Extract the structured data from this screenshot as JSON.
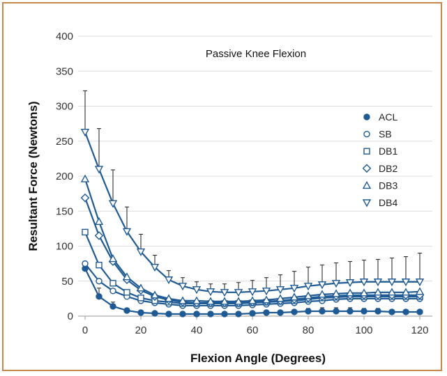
{
  "chart_data": {
    "type": "line",
    "title": "Passive Knee Flexion",
    "xlabel": "Flexion Angle (Degrees)",
    "ylabel": "Resultant Force (Newtons)",
    "xlim": [
      0,
      120
    ],
    "ylim": [
      0,
      400
    ],
    "x_ticks": [
      "0",
      "20",
      "40",
      "60",
      "80",
      "100",
      "120"
    ],
    "y_ticks": [
      "0",
      "50",
      "100",
      "150",
      "200",
      "250",
      "300",
      "350",
      "400"
    ],
    "grid": "horizontal",
    "legend_position": "right",
    "line_color": "#1f5a94",
    "x": [
      0,
      5,
      10,
      15,
      20,
      25,
      30,
      35,
      40,
      45,
      50,
      55,
      60,
      65,
      70,
      75,
      80,
      85,
      90,
      95,
      100,
      105,
      110,
      115,
      120
    ],
    "series": [
      {
        "name": "ACL",
        "marker": "circle-filled",
        "values": [
          68,
          28,
          14,
          8,
          5,
          4,
          3,
          3,
          3,
          3,
          3,
          3,
          4,
          5,
          5,
          6,
          7,
          7,
          7,
          7,
          7,
          7,
          6,
          6,
          6
        ],
        "error": [
          0,
          12,
          6,
          3,
          2,
          1,
          1,
          1,
          1,
          1,
          1,
          1,
          1,
          2,
          2,
          3,
          4,
          5,
          5,
          5,
          4,
          4,
          3,
          2,
          2
        ]
      },
      {
        "name": "SB",
        "marker": "circle-open",
        "values": [
          75,
          50,
          36,
          28,
          22,
          19,
          17,
          15,
          15,
          15,
          15,
          15,
          16,
          17,
          18,
          19,
          21,
          22,
          24,
          25,
          25,
          25,
          25,
          25,
          25
        ],
        "error": []
      },
      {
        "name": "DB1",
        "marker": "square-open",
        "values": [
          120,
          73,
          47,
          34,
          26,
          22,
          20,
          18,
          18,
          18,
          18,
          18,
          19,
          20,
          21,
          22,
          24,
          26,
          27,
          28,
          28,
          28,
          28,
          28,
          28
        ],
        "error": []
      },
      {
        "name": "DB2",
        "marker": "diamond-open",
        "values": [
          169,
          115,
          78,
          52,
          37,
          28,
          23,
          20,
          19,
          19,
          19,
          19,
          20,
          21,
          22,
          24,
          26,
          28,
          29,
          30,
          30,
          30,
          30,
          30,
          30
        ],
        "error": []
      },
      {
        "name": "DB3",
        "marker": "triangle-up-open",
        "values": [
          196,
          135,
          82,
          56,
          40,
          30,
          25,
          22,
          22,
          21,
          21,
          21,
          22,
          23,
          25,
          27,
          29,
          31,
          32,
          33,
          33,
          34,
          34,
          34,
          35
        ],
        "error": []
      },
      {
        "name": "DB4",
        "marker": "triangle-down-open",
        "values": [
          263,
          210,
          161,
          121,
          92,
          70,
          52,
          43,
          38,
          35,
          34,
          34,
          35,
          36,
          38,
          40,
          43,
          45,
          47,
          48,
          49,
          49,
          49,
          49,
          49
        ],
        "error": [
          59,
          58,
          48,
          35,
          25,
          17,
          13,
          12,
          11,
          11,
          12,
          14,
          16,
          19,
          21,
          24,
          27,
          28,
          29,
          30,
          31,
          32,
          34,
          36,
          41
        ]
      }
    ]
  }
}
